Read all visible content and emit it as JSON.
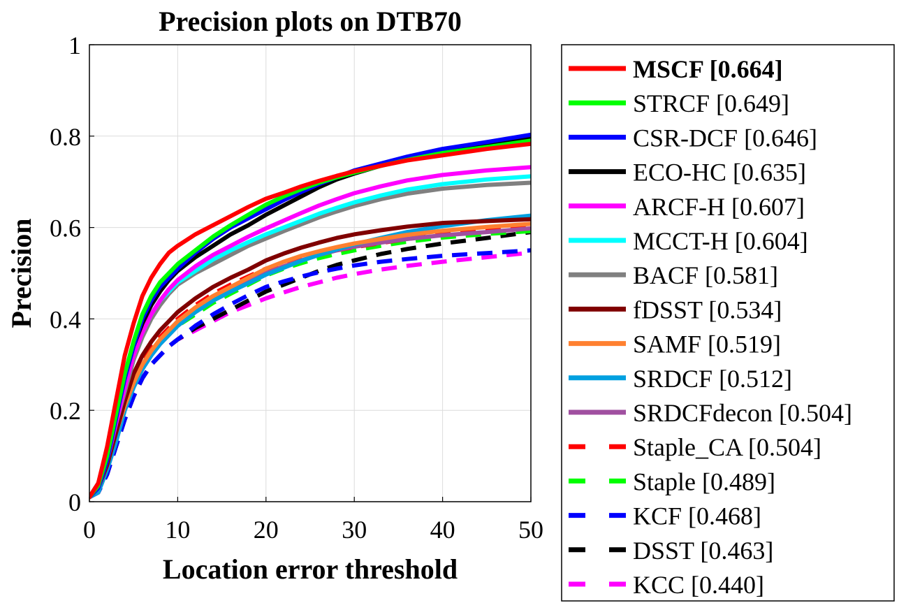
{
  "chart_data": {
    "type": "line",
    "title": "Precision plots on DTB70",
    "xlabel": "Location error threshold",
    "ylabel": "Precision",
    "xlim": [
      0,
      50
    ],
    "ylim": [
      0,
      1
    ],
    "grid": true,
    "legend_position": "outside-right",
    "x": [
      0,
      1,
      2,
      3,
      4,
      5,
      6,
      7,
      8,
      9,
      10,
      12,
      14,
      16,
      18,
      20,
      22,
      24,
      26,
      28,
      30,
      33,
      36,
      40,
      45,
      50
    ],
    "xticks": [
      "0",
      "10",
      "20",
      "30",
      "40",
      "50"
    ],
    "yticks": [
      "0",
      "0.2",
      "0.4",
      "0.6",
      "0.8",
      "1"
    ],
    "series": [
      {
        "name": "MSCF",
        "score": "0.664",
        "label": "MSCF [0.664]",
        "bold": true,
        "color": "#ff0000",
        "dash": "solid",
        "values": [
          0.01,
          0.04,
          0.12,
          0.22,
          0.32,
          0.39,
          0.45,
          0.49,
          0.52,
          0.545,
          0.56,
          0.585,
          0.605,
          0.625,
          0.645,
          0.663,
          0.676,
          0.69,
          0.702,
          0.713,
          0.723,
          0.735,
          0.747,
          0.758,
          0.772,
          0.783
        ]
      },
      {
        "name": "STRCF",
        "score": "0.649",
        "label": "STRCF [0.649]",
        "bold": false,
        "color": "#00ff00",
        "dash": "solid",
        "values": [
          0.01,
          0.035,
          0.1,
          0.19,
          0.28,
          0.35,
          0.41,
          0.45,
          0.48,
          0.5,
          0.52,
          0.55,
          0.58,
          0.605,
          0.628,
          0.65,
          0.668,
          0.684,
          0.698,
          0.71,
          0.72,
          0.735,
          0.748,
          0.763,
          0.776,
          0.79
        ]
      },
      {
        "name": "CSR-DCF",
        "score": "0.646",
        "label": "CSR-DCF [0.646]",
        "bold": false,
        "color": "#0000ff",
        "dash": "solid",
        "values": [
          0.01,
          0.03,
          0.09,
          0.18,
          0.27,
          0.34,
          0.4,
          0.44,
          0.47,
          0.49,
          0.51,
          0.545,
          0.575,
          0.6,
          0.62,
          0.64,
          0.66,
          0.678,
          0.695,
          0.71,
          0.725,
          0.74,
          0.755,
          0.772,
          0.787,
          0.803
        ]
      },
      {
        "name": "ECO-HC",
        "score": "0.635",
        "label": "ECO-HC [0.635]",
        "bold": false,
        "color": "#000000",
        "dash": "solid",
        "values": [
          0.01,
          0.04,
          0.1,
          0.19,
          0.27,
          0.34,
          0.39,
          0.43,
          0.46,
          0.485,
          0.505,
          0.535,
          0.56,
          0.585,
          0.605,
          0.628,
          0.648,
          0.668,
          0.688,
          0.705,
          0.718,
          0.735,
          0.75,
          0.765,
          0.78,
          0.795
        ]
      },
      {
        "name": "ARCF-H",
        "score": "0.607",
        "label": "ARCF-H [0.607]",
        "bold": false,
        "color": "#ff00ff",
        "dash": "solid",
        "values": [
          0.01,
          0.03,
          0.09,
          0.17,
          0.25,
          0.32,
          0.37,
          0.41,
          0.44,
          0.465,
          0.485,
          0.515,
          0.54,
          0.56,
          0.58,
          0.598,
          0.615,
          0.632,
          0.648,
          0.662,
          0.675,
          0.69,
          0.703,
          0.715,
          0.725,
          0.732
        ]
      },
      {
        "name": "MCCT-H",
        "score": "0.604",
        "label": "MCCT-H [0.604]",
        "bold": false,
        "color": "#00ffff",
        "dash": "solid",
        "values": [
          0.01,
          0.03,
          0.09,
          0.17,
          0.25,
          0.32,
          0.37,
          0.41,
          0.44,
          0.46,
          0.48,
          0.505,
          0.53,
          0.55,
          0.568,
          0.585,
          0.6,
          0.615,
          0.63,
          0.643,
          0.655,
          0.67,
          0.683,
          0.695,
          0.705,
          0.712
        ]
      },
      {
        "name": "BACF",
        "score": "0.581",
        "label": "BACF [0.581]",
        "bold": false,
        "color": "#808080",
        "dash": "solid",
        "values": [
          0.01,
          0.03,
          0.09,
          0.17,
          0.24,
          0.31,
          0.36,
          0.4,
          0.43,
          0.455,
          0.475,
          0.5,
          0.52,
          0.54,
          0.56,
          0.576,
          0.592,
          0.607,
          0.622,
          0.635,
          0.647,
          0.662,
          0.674,
          0.685,
          0.693,
          0.698
        ]
      },
      {
        "name": "fDSST",
        "score": "0.534",
        "label": "fDSST [0.534]",
        "bold": false,
        "color": "#800000",
        "dash": "solid",
        "values": [
          0.01,
          0.03,
          0.08,
          0.15,
          0.22,
          0.28,
          0.32,
          0.35,
          0.375,
          0.395,
          0.415,
          0.445,
          0.47,
          0.49,
          0.508,
          0.528,
          0.543,
          0.556,
          0.567,
          0.577,
          0.585,
          0.594,
          0.602,
          0.61,
          0.614,
          0.618
        ]
      },
      {
        "name": "SAMF",
        "score": "0.519",
        "label": "SAMF [0.519]",
        "bold": false,
        "color": "#ff8030",
        "dash": "solid",
        "values": [
          0.01,
          0.03,
          0.08,
          0.15,
          0.21,
          0.26,
          0.3,
          0.33,
          0.355,
          0.375,
          0.395,
          0.425,
          0.45,
          0.47,
          0.49,
          0.51,
          0.525,
          0.538,
          0.548,
          0.557,
          0.565,
          0.575,
          0.584,
          0.593,
          0.601,
          0.608
        ]
      },
      {
        "name": "SRDCF",
        "score": "0.512",
        "label": "SRDCF [0.512]",
        "bold": false,
        "color": "#00a0e0",
        "dash": "solid",
        "values": [
          0.01,
          0.02,
          0.07,
          0.13,
          0.2,
          0.25,
          0.29,
          0.32,
          0.345,
          0.365,
          0.385,
          0.415,
          0.44,
          0.46,
          0.478,
          0.497,
          0.512,
          0.527,
          0.54,
          0.552,
          0.563,
          0.577,
          0.59,
          0.603,
          0.616,
          0.626
        ]
      },
      {
        "name": "SRDCFdecon",
        "score": "0.504",
        "label": "SRDCFdecon [0.504]",
        "bold": false,
        "color": "#a050a0",
        "dash": "solid",
        "values": [
          0.01,
          0.02,
          0.07,
          0.13,
          0.2,
          0.25,
          0.29,
          0.32,
          0.345,
          0.365,
          0.385,
          0.415,
          0.44,
          0.46,
          0.48,
          0.5,
          0.515,
          0.528,
          0.54,
          0.55,
          0.558,
          0.567,
          0.575,
          0.583,
          0.59,
          0.598
        ]
      },
      {
        "name": "Staple_CA",
        "score": "0.504",
        "label": "Staple_CA [0.504]",
        "bold": false,
        "color": "#ff0000",
        "dash": "dashed",
        "values": [
          0.01,
          0.03,
          0.08,
          0.15,
          0.22,
          0.27,
          0.31,
          0.34,
          0.36,
          0.38,
          0.4,
          0.43,
          0.455,
          0.475,
          0.493,
          0.51,
          0.522,
          0.533,
          0.542,
          0.55,
          0.557,
          0.566,
          0.575,
          0.585,
          0.595,
          0.605
        ]
      },
      {
        "name": "Staple",
        "score": "0.489",
        "label": "Staple [0.489]",
        "bold": false,
        "color": "#00ff00",
        "dash": "dashed",
        "values": [
          0.01,
          0.03,
          0.08,
          0.15,
          0.21,
          0.26,
          0.3,
          0.33,
          0.35,
          0.37,
          0.385,
          0.41,
          0.435,
          0.455,
          0.475,
          0.495,
          0.51,
          0.522,
          0.533,
          0.542,
          0.55,
          0.56,
          0.569,
          0.578,
          0.586,
          0.592
        ]
      },
      {
        "name": "KCF",
        "score": "0.468",
        "label": "KCF [0.468]",
        "bold": false,
        "color": "#0000ff",
        "dash": "dashed",
        "values": [
          0.01,
          0.02,
          0.06,
          0.12,
          0.18,
          0.23,
          0.27,
          0.3,
          0.32,
          0.34,
          0.355,
          0.385,
          0.41,
          0.432,
          0.452,
          0.47,
          0.482,
          0.493,
          0.502,
          0.51,
          0.517,
          0.525,
          0.531,
          0.538,
          0.544,
          0.55
        ]
      },
      {
        "name": "DSST",
        "score": "0.463",
        "label": "DSST [0.463]",
        "bold": false,
        "color": "#000000",
        "dash": "dashed",
        "values": [
          0.01,
          0.02,
          0.06,
          0.12,
          0.18,
          0.23,
          0.27,
          0.3,
          0.32,
          0.34,
          0.355,
          0.38,
          0.4,
          0.42,
          0.44,
          0.46,
          0.475,
          0.49,
          0.505,
          0.518,
          0.528,
          0.542,
          0.553,
          0.565,
          0.577,
          0.59
        ]
      },
      {
        "name": "KCC",
        "score": "0.440",
        "label": "KCC [0.440]",
        "bold": false,
        "color": "#ff00ff",
        "dash": "dashed",
        "values": [
          0.01,
          0.02,
          0.06,
          0.12,
          0.18,
          0.23,
          0.27,
          0.3,
          0.32,
          0.34,
          0.355,
          0.375,
          0.395,
          0.415,
          0.43,
          0.445,
          0.458,
          0.47,
          0.48,
          0.49,
          0.498,
          0.508,
          0.516,
          0.525,
          0.535,
          0.545
        ]
      }
    ]
  }
}
